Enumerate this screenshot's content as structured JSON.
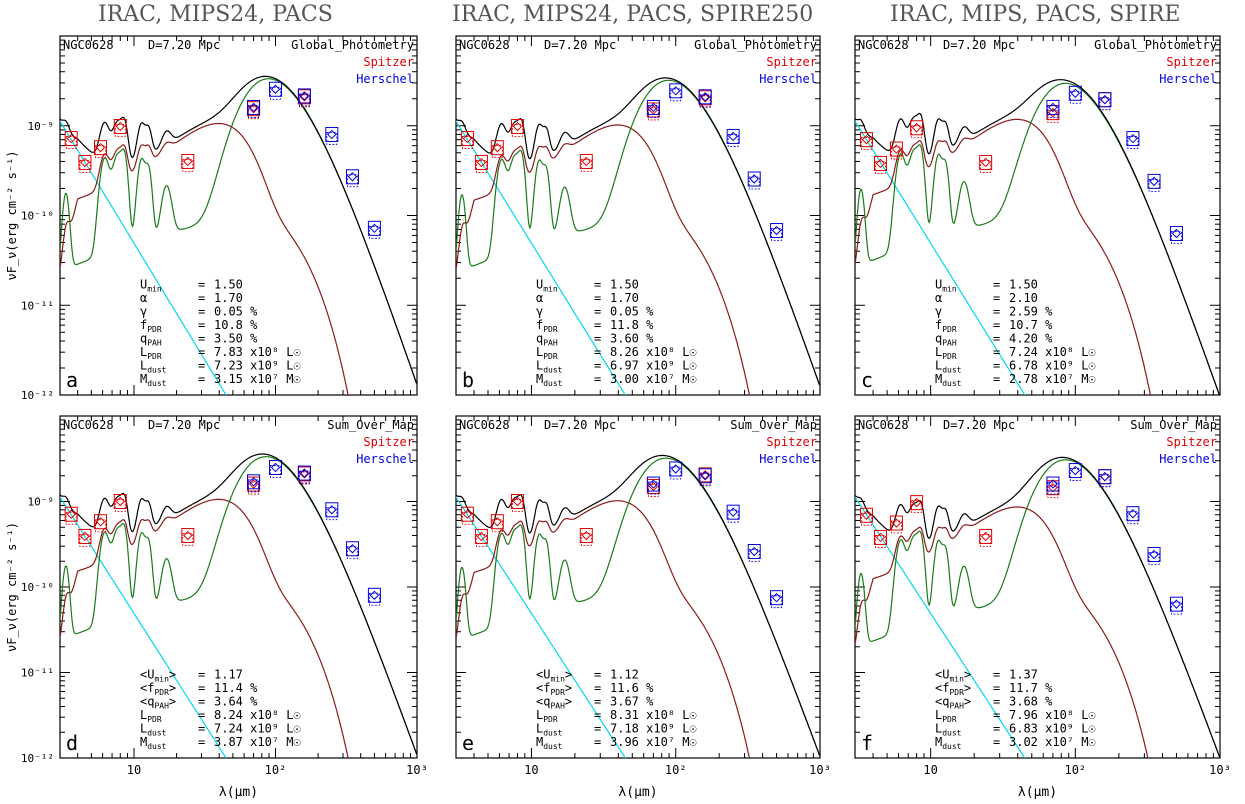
{
  "column_titles": [
    "IRAC, MIPS24, PACS",
    "IRAC, MIPS24, PACS, SPIRE250",
    "IRAC, MIPS, PACS, SPIRE"
  ],
  "colors": {
    "spitzer": "#e00000",
    "herschel": "#0000dd",
    "total": "#000000",
    "dust": "#1a7a1a",
    "pdr": "#8b1a1a",
    "stars": "#00d8e8"
  },
  "chart_data": [
    {
      "type": "line",
      "panel": "a",
      "galaxy": "NGC0628",
      "distance": "D=7.20 Mpc",
      "method": "Global_Photometry",
      "legend": [
        "Spitzer",
        "Herschel"
      ],
      "xlabel": "",
      "ylabel": "νF_ν(erg cm⁻² s⁻¹)",
      "xscale": "log",
      "yscale": "log",
      "xlim": [
        3,
        1000
      ],
      "ylim": [
        1e-12,
        1e-08
      ],
      "xticks": [
        "",
        "",
        ""
      ],
      "yticks": [
        "10⁻⁹",
        "10⁻¹⁰",
        "10⁻¹¹",
        "10⁻¹²"
      ],
      "params": [
        [
          "U_min",
          "=",
          "1.50"
        ],
        [
          "α",
          "=",
          "1.70"
        ],
        [
          "γ",
          "=",
          "0.05 %"
        ],
        [
          "f_PDR",
          "=",
          "10.8 %"
        ],
        [
          "q_PAH",
          "=",
          "3.50 %"
        ],
        [
          "L_PDR",
          "=",
          "7.83 x10⁸ L☉"
        ],
        [
          "L_dust",
          "=",
          "7.23 x10⁹ L☉"
        ],
        [
          "M_dust",
          "=",
          "3.15 x10⁷ M☉"
        ]
      ],
      "spitzer": [
        [
          3.6,
          7.2e-10
        ],
        [
          4.5,
          3.9e-10
        ],
        [
          5.8,
          5.7e-10
        ],
        [
          8.0,
          9.8e-10
        ],
        [
          24,
          4e-10
        ],
        [
          70,
          1.55e-09
        ],
        [
          160,
          2.1e-09
        ]
      ],
      "herschel": [
        [
          70,
          1.6e-09
        ],
        [
          100,
          2.55e-09
        ],
        [
          160,
          2.15e-09
        ],
        [
          250,
          8e-10
        ],
        [
          350,
          2.7e-10
        ],
        [
          500,
          7.2e-11
        ]
      ],
      "model": {
        "peak": 2.6e-09,
        "peakx": 125,
        "ism": 2.7e-10,
        "beta": 1.8,
        "star0": 7e-10
      }
    },
    {
      "type": "line",
      "panel": "b",
      "galaxy": "NGC0628",
      "distance": "D=7.20 Mpc",
      "method": "Global_Photometry",
      "legend": [
        "Spitzer",
        "Herschel"
      ],
      "xlabel": "",
      "ylabel": "",
      "xscale": "log",
      "yscale": "log",
      "xlim": [
        3,
        1000
      ],
      "ylim": [
        1e-12,
        1e-08
      ],
      "params": [
        [
          "U_min",
          "=",
          "1.50"
        ],
        [
          "α",
          "=",
          "1.70"
        ],
        [
          "γ",
          "=",
          "0.05 %"
        ],
        [
          "f_PDR",
          "=",
          "11.8 %"
        ],
        [
          "q_PAH",
          "=",
          "3.60 %"
        ],
        [
          "L_PDR",
          "=",
          "8.26 x10⁸ L☉"
        ],
        [
          "L_dust",
          "=",
          "6.97 x10⁹ L☉"
        ],
        [
          "M_dust",
          "=",
          "3.00 x10⁷ M☉"
        ]
      ],
      "spitzer": [
        [
          3.6,
          7.2e-10
        ],
        [
          4.5,
          3.9e-10
        ],
        [
          5.8,
          5.7e-10
        ],
        [
          8.0,
          9.8e-10
        ],
        [
          24,
          4e-10
        ],
        [
          70,
          1.5e-09
        ],
        [
          160,
          2.05e-09
        ]
      ],
      "herschel": [
        [
          70,
          1.6e-09
        ],
        [
          100,
          2.45e-09
        ],
        [
          160,
          2.1e-09
        ],
        [
          250,
          7.6e-10
        ],
        [
          350,
          2.55e-10
        ],
        [
          500,
          6.8e-11
        ]
      ],
      "model": {
        "peak": 2.5e-09,
        "peakx": 125,
        "ism": 2.6e-10,
        "beta": 1.8,
        "star0": 7e-10
      }
    },
    {
      "type": "line",
      "panel": "c",
      "galaxy": "NGC0628",
      "distance": "D=7.20 Mpc",
      "method": "Global_Photometry",
      "legend": [
        "Spitzer",
        "Herschel"
      ],
      "xlabel": "",
      "ylabel": "",
      "xscale": "log",
      "yscale": "log",
      "xlim": [
        3,
        1000
      ],
      "ylim": [
        1e-12,
        1e-08
      ],
      "params": [
        [
          "U_min",
          "=",
          "1.50"
        ],
        [
          "α",
          "=",
          "2.10"
        ],
        [
          "γ",
          "=",
          "2.59 %"
        ],
        [
          "f_PDR",
          "=",
          "10.7 %"
        ],
        [
          "q_PAH",
          "=",
          "4.20 %"
        ],
        [
          "L_PDR",
          "=",
          "7.24 x10⁸ L☉"
        ],
        [
          "L_dust",
          "=",
          "6.78 x10⁹ L☉"
        ],
        [
          "M_dust",
          "=",
          "2.78 x10⁷ M☉"
        ]
      ],
      "spitzer": [
        [
          3.6,
          7e-10
        ],
        [
          4.5,
          3.8e-10
        ],
        [
          5.8,
          5.5e-10
        ],
        [
          8.0,
          9.5e-10
        ],
        [
          24,
          3.9e-10
        ],
        [
          70,
          1.4e-09
        ],
        [
          160,
          1.95e-09
        ]
      ],
      "herschel": [
        [
          70,
          1.6e-09
        ],
        [
          100,
          2.3e-09
        ],
        [
          160,
          1.95e-09
        ],
        [
          250,
          7.2e-10
        ],
        [
          350,
          2.4e-10
        ],
        [
          500,
          6.3e-11
        ]
      ],
      "model": {
        "peak": 2.3e-09,
        "peakx": 120,
        "ism": 3e-10,
        "beta": 1.8,
        "star0": 7e-10
      }
    },
    {
      "type": "line",
      "panel": "d",
      "galaxy": "NGC0628",
      "distance": "D=7.20 Mpc",
      "method": "Sum_Over_Map",
      "legend": [
        "Spitzer",
        "Herschel"
      ],
      "xlabel": "λ(μm)",
      "ylabel": "νF_ν(erg cm⁻² s⁻¹)",
      "xscale": "log",
      "yscale": "log",
      "xlim": [
        3,
        1000
      ],
      "ylim": [
        1e-12,
        1e-08
      ],
      "xticks": [
        "10",
        "10²",
        "10³"
      ],
      "yticks": [
        "10⁻⁹",
        "10⁻¹⁰",
        "10⁻¹¹",
        "10⁻¹²"
      ],
      "params": [
        [
          "<U_min>",
          "=",
          "1.17"
        ],
        [
          "<f_PDR>",
          "=",
          "11.4 %"
        ],
        [
          "<q_PAH>",
          "=",
          "3.64 %"
        ],
        [
          "L_PDR",
          "=",
          "8.24 x10⁸ L☉"
        ],
        [
          "L_dust",
          "=",
          "7.24 x10⁹ L☉"
        ],
        [
          "M_dust",
          "=",
          "3.87 x10⁷ M☉"
        ]
      ],
      "spitzer": [
        [
          3.6,
          7.1e-10
        ],
        [
          4.5,
          3.9e-10
        ],
        [
          5.8,
          5.8e-10
        ],
        [
          8.0,
          1e-09
        ],
        [
          24,
          4e-10
        ],
        [
          70,
          1.6e-09
        ],
        [
          160,
          2.1e-09
        ]
      ],
      "herschel": [
        [
          70,
          1.7e-09
        ],
        [
          100,
          2.5e-09
        ],
        [
          160,
          2.15e-09
        ],
        [
          250,
          8e-10
        ],
        [
          350,
          2.8e-10
        ],
        [
          500,
          8e-11
        ]
      ],
      "model": {
        "peak": 2.6e-09,
        "peakx": 120,
        "ism": 2.7e-10,
        "beta": 1.8,
        "star0": 7e-10
      }
    },
    {
      "type": "line",
      "panel": "e",
      "galaxy": "NGC0628",
      "distance": "D=7.20 Mpc",
      "method": "Sum_Over_Map",
      "legend": [
        "Spitzer",
        "Herschel"
      ],
      "xlabel": "λ(μm)",
      "ylabel": "",
      "xscale": "log",
      "yscale": "log",
      "xlim": [
        3,
        1000
      ],
      "ylim": [
        1e-12,
        1e-08
      ],
      "xticks": [
        "10",
        "10²",
        "10³"
      ],
      "params": [
        [
          "<U_min>",
          "=",
          "1.12"
        ],
        [
          "<f_PDR>",
          "=",
          "11.6 %"
        ],
        [
          "<q_PAH>",
          "=",
          "3.67 %"
        ],
        [
          "L_PDR",
          "=",
          "8.31 x10⁸ L☉"
        ],
        [
          "L_dust",
          "=",
          "7.18 x10⁹ L☉"
        ],
        [
          "M_dust",
          "=",
          "3.96 x10⁷ M☉"
        ]
      ],
      "spitzer": [
        [
          3.6,
          7.1e-10
        ],
        [
          4.5,
          3.9e-10
        ],
        [
          5.8,
          5.8e-10
        ],
        [
          8.0,
          1e-09
        ],
        [
          24,
          4e-10
        ],
        [
          70,
          1.5e-09
        ],
        [
          160,
          2.05e-09
        ]
      ],
      "herschel": [
        [
          70,
          1.6e-09
        ],
        [
          100,
          2.4e-09
        ],
        [
          160,
          2e-09
        ],
        [
          250,
          7.5e-10
        ],
        [
          350,
          2.6e-10
        ],
        [
          500,
          7.5e-11
        ]
      ],
      "model": {
        "peak": 2.5e-09,
        "peakx": 120,
        "ism": 2.6e-10,
        "beta": 1.8,
        "star0": 7e-10
      }
    },
    {
      "type": "line",
      "panel": "f",
      "galaxy": "NGC0628",
      "distance": "D=7.20 Mpc",
      "method": "Sum_Over_Map",
      "legend": [
        "Spitzer",
        "Herschel"
      ],
      "xlabel": "λ(μm)",
      "ylabel": "",
      "xscale": "log",
      "yscale": "log",
      "xlim": [
        3,
        1000
      ],
      "ylim": [
        1e-12,
        1e-08
      ],
      "xticks": [
        "10",
        "10²",
        "10³"
      ],
      "params": [
        [
          "<U_min>",
          "=",
          "1.37"
        ],
        [
          "<f_PDR>",
          "=",
          "11.7 %"
        ],
        [
          "<q_PAH>",
          "=",
          "3.68 %"
        ],
        [
          "L_PDR",
          "=",
          "7.96 x10⁸ L☉"
        ],
        [
          "L_dust",
          "=",
          "6.83 x10⁹ L☉"
        ],
        [
          "M_dust",
          "=",
          "3.02 x10⁷ M☉"
        ]
      ],
      "spitzer": [
        [
          3.6,
          6.9e-10
        ],
        [
          4.5,
          3.8e-10
        ],
        [
          5.8,
          5.6e-10
        ],
        [
          8.0,
          9.7e-10
        ],
        [
          24,
          3.9e-10
        ],
        [
          70,
          1.45e-09
        ],
        [
          160,
          1.95e-09
        ]
      ],
      "herschel": [
        [
          70,
          1.6e-09
        ],
        [
          100,
          2.3e-09
        ],
        [
          160,
          1.95e-09
        ],
        [
          250,
          7.2e-10
        ],
        [
          350,
          2.4e-10
        ],
        [
          500,
          6.3e-11
        ]
      ],
      "model": {
        "peak": 2.4e-09,
        "peakx": 120,
        "ism": 2.2e-10,
        "beta": 1.8,
        "star0": 7e-10
      }
    }
  ]
}
